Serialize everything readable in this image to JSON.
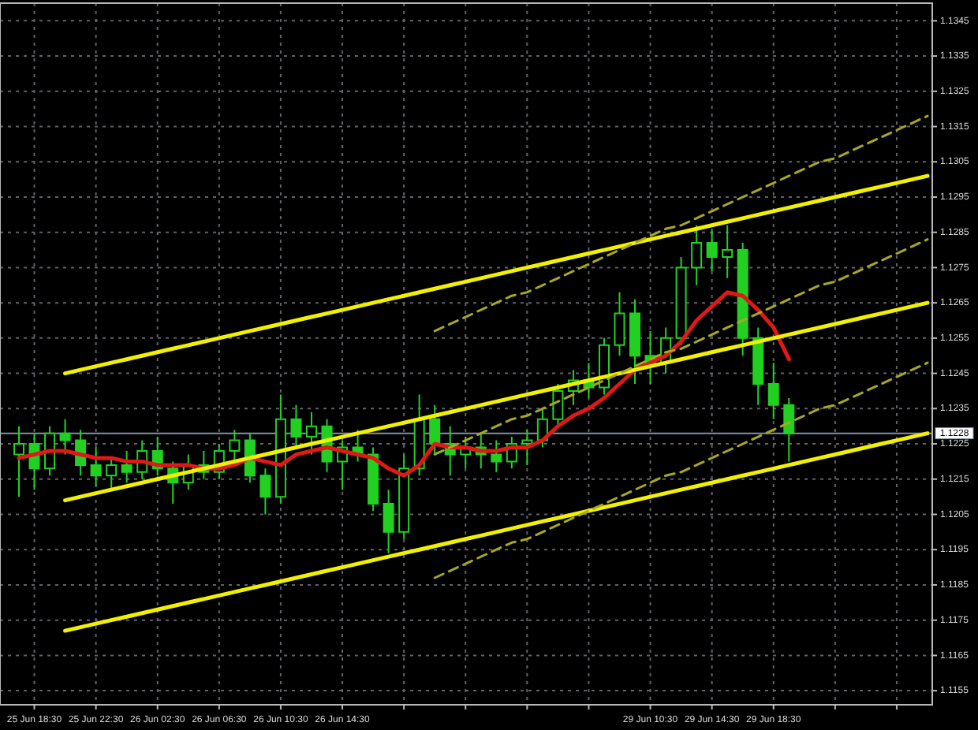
{
  "chart_data": {
    "type": "candlestick",
    "color": "#22d022",
    "categories": [
      null,
      "25 Jun 18:30",
      null,
      null,
      null,
      "25 Jun 22:30",
      null,
      null,
      null,
      "26 Jun 02:30",
      null,
      null,
      null,
      "26 Jun 06:30",
      null,
      null,
      null,
      "26 Jun 10:30",
      null,
      null,
      null,
      "26 Jun 14:30",
      null,
      null,
      null,
      null,
      null,
      null,
      null,
      null,
      null,
      null,
      null,
      null,
      null,
      null,
      null,
      null,
      null,
      null,
      null,
      "29 Jun 10:30",
      null,
      null,
      null,
      "29 Jun 14:30",
      null,
      null,
      null,
      "29 Jun 18:30",
      null,
      null,
      null,
      null,
      null,
      null,
      null,
      null,
      null,
      null
    ],
    "ohlc": [
      [
        1.1222,
        1.123,
        1.121,
        1.1225
      ],
      [
        1.1225,
        1.1228,
        1.1212,
        1.1218
      ],
      [
        1.1218,
        1.123,
        1.1216,
        1.1228
      ],
      [
        1.1228,
        1.1232,
        1.1222,
        1.1226
      ],
      [
        1.1226,
        1.1229,
        1.1216,
        1.1219
      ],
      [
        1.1219,
        1.1224,
        1.1213,
        1.1216
      ],
      [
        1.1216,
        1.1221,
        1.1212,
        1.1219
      ],
      [
        1.1219,
        1.1223,
        1.1214,
        1.1217
      ],
      [
        1.1217,
        1.1226,
        1.1215,
        1.1223
      ],
      [
        1.1223,
        1.1227,
        1.1216,
        1.1218
      ],
      [
        1.1218,
        1.122,
        1.1208,
        1.1214
      ],
      [
        1.1214,
        1.1222,
        1.1212,
        1.1219
      ],
      [
        1.1219,
        1.1223,
        1.1215,
        1.1217
      ],
      [
        1.1217,
        1.1225,
        1.1215,
        1.1223
      ],
      [
        1.1223,
        1.1229,
        1.122,
        1.1226
      ],
      [
        1.1226,
        1.1228,
        1.1214,
        1.1216
      ],
      [
        1.1216,
        1.1218,
        1.1205,
        1.121
      ],
      [
        1.121,
        1.1239,
        1.1208,
        1.1232
      ],
      [
        1.1232,
        1.1236,
        1.1224,
        1.1227
      ],
      [
        1.1227,
        1.1234,
        1.1222,
        1.123
      ],
      [
        1.123,
        1.1232,
        1.1217,
        1.122
      ],
      [
        1.122,
        1.1226,
        1.1212,
        1.1224
      ],
      [
        1.1224,
        1.1229,
        1.122,
        1.1222
      ],
      [
        1.1222,
        1.1224,
        1.1206,
        1.1208
      ],
      [
        1.1208,
        1.1212,
        1.1194,
        1.12
      ],
      [
        1.12,
        1.1222,
        1.1198,
        1.1218
      ],
      [
        1.1218,
        1.1239,
        1.1216,
        1.1232
      ],
      [
        1.1232,
        1.1236,
        1.1222,
        1.1225
      ],
      [
        1.1225,
        1.123,
        1.1216,
        1.1222
      ],
      [
        1.1222,
        1.1227,
        1.1218,
        1.1224
      ],
      [
        1.1224,
        1.1228,
        1.1218,
        1.1222
      ],
      [
        1.1222,
        1.1226,
        1.1217,
        1.122
      ],
      [
        1.122,
        1.1227,
        1.1218,
        1.1225
      ],
      [
        1.1225,
        1.1229,
        1.1219,
        1.1226
      ],
      [
        1.1226,
        1.1235,
        1.1224,
        1.1232
      ],
      [
        1.1232,
        1.1242,
        1.123,
        1.124
      ],
      [
        1.124,
        1.1246,
        1.1236,
        1.1243
      ],
      [
        1.1243,
        1.1248,
        1.1238,
        1.1241
      ],
      [
        1.1241,
        1.1255,
        1.1239,
        1.1253
      ],
      [
        1.1253,
        1.1268,
        1.125,
        1.1262
      ],
      [
        1.1262,
        1.1266,
        1.1242,
        1.125
      ],
      [
        1.125,
        1.1257,
        1.1242,
        1.1248
      ],
      [
        1.1248,
        1.1258,
        1.1245,
        1.1255
      ],
      [
        1.1255,
        1.1278,
        1.1253,
        1.1275
      ],
      [
        1.1275,
        1.1287,
        1.127,
        1.1282
      ],
      [
        1.1282,
        1.1286,
        1.1274,
        1.1278
      ],
      [
        1.1278,
        1.1287,
        1.1272,
        1.128
      ],
      [
        1.128,
        1.1282,
        1.125,
        1.1255
      ],
      [
        1.1255,
        1.1258,
        1.1236,
        1.1242
      ],
      [
        1.1242,
        1.1248,
        1.1232,
        1.1236
      ],
      [
        1.1236,
        1.1238,
        1.122,
        1.1228
      ],
      null,
      null,
      null,
      null,
      null,
      null,
      null,
      null,
      null
    ],
    "series": [
      {
        "type": "line",
        "color": "#e01818",
        "line_style": "solid",
        "values": [
          1.1221,
          1.1222,
          1.1223,
          1.1223,
          1.1222,
          1.1221,
          1.1221,
          1.122,
          1.122,
          1.1219,
          1.1219,
          1.1219,
          1.1218,
          1.1218,
          1.1219,
          1.1221,
          1.122,
          1.1219,
          1.1222,
          1.1223,
          1.1224,
          1.1223,
          1.1222,
          1.1221,
          1.1218,
          1.1216,
          1.1219,
          1.1225,
          1.1224,
          1.1224,
          1.1223,
          1.1223,
          1.1224,
          1.1224,
          1.1226,
          1.123,
          1.1233,
          1.1235,
          1.1238,
          1.1242,
          1.1246,
          1.1248,
          1.125,
          1.1254,
          1.126,
          1.1264,
          1.1268,
          1.1267,
          1.1263,
          1.1258,
          1.1249,
          null,
          null,
          null,
          null,
          null,
          null,
          null,
          null,
          null
        ]
      },
      {
        "type": "line",
        "color": "#f0f000",
        "line_style": "solid",
        "values": [
          null,
          null,
          null,
          1.1245,
          1.1246,
          1.1247,
          1.1248,
          1.1249,
          1.125,
          1.1251,
          1.1252,
          1.1253,
          1.1254,
          1.1255,
          1.1256,
          1.1257,
          1.1258,
          1.1259,
          1.126,
          1.1261,
          1.1262,
          1.1263,
          1.1264,
          1.1265,
          1.1266,
          1.1267,
          1.1268,
          1.1269,
          1.127,
          1.1271,
          1.1272,
          1.1273,
          1.1274,
          1.1275,
          1.1276,
          1.1277,
          1.1278,
          1.1279,
          1.128,
          1.1281,
          1.1282,
          1.1283,
          1.1284,
          1.1285,
          1.1286,
          1.1287,
          1.1288,
          1.1289,
          1.129,
          1.1291,
          1.1292,
          1.1293,
          1.1294,
          1.1295,
          1.1296,
          1.1297,
          1.1298,
          1.1299,
          1.13,
          1.1301
        ]
      },
      {
        "type": "line",
        "color": "#f0f000",
        "line_style": "solid",
        "values": [
          null,
          null,
          null,
          1.1209,
          1.121,
          1.1211,
          1.1212,
          1.1213,
          1.1214,
          1.1215,
          1.1216,
          1.1217,
          1.1218,
          1.1219,
          1.122,
          1.1221,
          1.1222,
          1.1223,
          1.1224,
          1.1225,
          1.1226,
          1.1227,
          1.1228,
          1.1229,
          1.123,
          1.1231,
          1.1232,
          1.1233,
          1.1234,
          1.1235,
          1.1236,
          1.1237,
          1.1238,
          1.1239,
          1.124,
          1.1241,
          1.1242,
          1.1243,
          1.1244,
          1.1245,
          1.1246,
          1.1247,
          1.1248,
          1.1249,
          1.125,
          1.1251,
          1.1252,
          1.1253,
          1.1254,
          1.1255,
          1.1256,
          1.1257,
          1.1258,
          1.1259,
          1.126,
          1.1261,
          1.1262,
          1.1263,
          1.1264,
          1.1265
        ]
      },
      {
        "type": "line",
        "color": "#f0f000",
        "line_style": "solid",
        "values": [
          null,
          null,
          null,
          1.1172,
          1.1173,
          1.1174,
          1.1175,
          1.1176,
          1.1177,
          1.1178,
          1.1179,
          1.118,
          1.1181,
          1.1182,
          1.1183,
          1.1184,
          1.1185,
          1.1186,
          1.1187,
          1.1188,
          1.1189,
          1.119,
          1.1191,
          1.1192,
          1.1193,
          1.1194,
          1.1195,
          1.1196,
          1.1197,
          1.1198,
          1.1199,
          1.12,
          1.1201,
          1.1202,
          1.1203,
          1.1204,
          1.1205,
          1.1206,
          1.1207,
          1.1208,
          1.1209,
          1.121,
          1.1211,
          1.1212,
          1.1213,
          1.1214,
          1.1215,
          1.1216,
          1.1217,
          1.1218,
          1.1219,
          1.122,
          1.1221,
          1.1222,
          1.1223,
          1.1224,
          1.1225,
          1.1226,
          1.1227,
          1.1228
        ]
      },
      {
        "type": "line",
        "color": "#a8a820",
        "line_style": "dashed",
        "values": [
          null,
          null,
          null,
          null,
          null,
          null,
          null,
          null,
          null,
          null,
          null,
          null,
          null,
          null,
          null,
          null,
          null,
          null,
          null,
          null,
          null,
          null,
          null,
          null,
          null,
          null,
          null,
          1.1257,
          1.1259,
          1.1261,
          1.1263,
          1.1265,
          1.1267,
          1.1268,
          1.127,
          1.1272,
          1.1274,
          1.1276,
          1.1278,
          1.128,
          1.1282,
          1.1284,
          1.1286,
          1.1287,
          1.1289,
          1.1291,
          1.1293,
          1.1295,
          1.1297,
          1.1299,
          1.1301,
          1.1303,
          1.1305,
          1.1306,
          1.1308,
          1.131,
          1.1312,
          1.1314,
          1.1316,
          1.1318
        ]
      },
      {
        "type": "line",
        "color": "#a8a820",
        "line_style": "dashed",
        "values": [
          null,
          null,
          null,
          null,
          null,
          null,
          null,
          null,
          null,
          null,
          null,
          null,
          null,
          null,
          null,
          null,
          null,
          null,
          null,
          null,
          null,
          null,
          null,
          null,
          null,
          null,
          null,
          1.1222,
          1.1224,
          1.1226,
          1.1228,
          1.123,
          1.1232,
          1.1233,
          1.1235,
          1.1237,
          1.1239,
          1.1241,
          1.1243,
          1.1245,
          1.1247,
          1.1249,
          1.1251,
          1.1252,
          1.1254,
          1.1256,
          1.1258,
          1.126,
          1.1262,
          1.1264,
          1.1266,
          1.1268,
          1.127,
          1.1271,
          1.1273,
          1.1275,
          1.1277,
          1.1279,
          1.1281,
          1.1283
        ]
      },
      {
        "type": "line",
        "color": "#a8a820",
        "line_style": "dashed",
        "values": [
          null,
          null,
          null,
          null,
          null,
          null,
          null,
          null,
          null,
          null,
          null,
          null,
          null,
          null,
          null,
          null,
          null,
          null,
          null,
          null,
          null,
          null,
          null,
          null,
          null,
          null,
          null,
          1.1187,
          1.1189,
          1.1191,
          1.1193,
          1.1195,
          1.1197,
          1.1198,
          1.12,
          1.1202,
          1.1204,
          1.1206,
          1.1208,
          1.121,
          1.1212,
          1.1214,
          1.1216,
          1.1217,
          1.1219,
          1.1221,
          1.1223,
          1.1225,
          1.1227,
          1.1229,
          1.1231,
          1.1233,
          1.1235,
          1.1236,
          1.1238,
          1.124,
          1.1242,
          1.1244,
          1.1246,
          1.1248
        ]
      }
    ],
    "ref_lines": [
      {
        "axis": "y",
        "value": 1.1228,
        "label": "1.1228",
        "color": "#8090a8"
      }
    ],
    "ylim": [
      1.1151,
      1.135
    ],
    "yticks": [
      1.1155,
      1.1165,
      1.1175,
      1.1185,
      1.1195,
      1.1205,
      1.1215,
      1.1225,
      1.1235,
      1.1245,
      1.1255,
      1.1265,
      1.1275,
      1.1285,
      1.1295,
      1.1305,
      1.1315,
      1.1325,
      1.1335,
      1.1345
    ],
    "grid": true
  }
}
